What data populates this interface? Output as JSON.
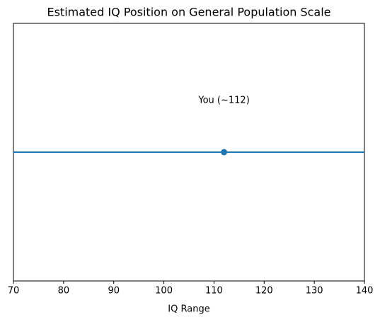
{
  "chart_data": {
    "type": "line",
    "title": "Estimated IQ Position on General Population Scale",
    "xlabel": "IQ Range",
    "xlim": [
      70,
      140
    ],
    "xticks": [
      70,
      80,
      90,
      100,
      110,
      120,
      130,
      140
    ],
    "ylim": [
      -1,
      1
    ],
    "series": [
      {
        "color": "#1f77b4",
        "x": [
          70,
          140
        ],
        "values": [
          0,
          0
        ],
        "marker": false
      },
      {
        "color": "#1f77b4",
        "x": [
          112
        ],
        "values": [
          0
        ],
        "marker": true
      }
    ],
    "annotation": {
      "text": "You (~112)",
      "x": 112
    }
  }
}
